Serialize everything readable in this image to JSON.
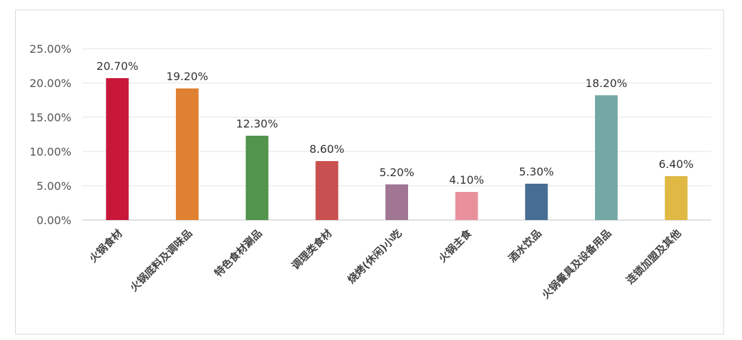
{
  "chart_data": {
    "type": "bar",
    "categories": [
      "火锅食材",
      "火锅底料及调味品",
      "特色食材涮品",
      "调理类食材",
      "烧烤(休闲)小吃",
      "火锅主食",
      "酒水饮品",
      "火锅餐具及设备用品",
      "连锁加盟及其他"
    ],
    "values": [
      20.7,
      19.2,
      12.3,
      8.6,
      5.2,
      4.1,
      5.3,
      18.2,
      6.4
    ],
    "value_labels": [
      "20.70%",
      "19.20%",
      "12.30%",
      "8.60%",
      "5.20%",
      "4.10%",
      "5.30%",
      "18.20%",
      "6.40%"
    ],
    "colors": [
      "#c8183a",
      "#e08132",
      "#52944d",
      "#c95050",
      "#a07693",
      "#e8919c",
      "#476d94",
      "#74a8a5",
      "#dfb944"
    ],
    "y_ticks": [
      0,
      5,
      10,
      15,
      20,
      25
    ],
    "y_tick_labels": [
      "0.00%",
      "5.00%",
      "10.00%",
      "15.00%",
      "20.00%",
      "25.00%"
    ],
    "ylim": [
      0,
      25
    ],
    "grid": true,
    "title": "",
    "xlabel": "",
    "ylabel": ""
  }
}
